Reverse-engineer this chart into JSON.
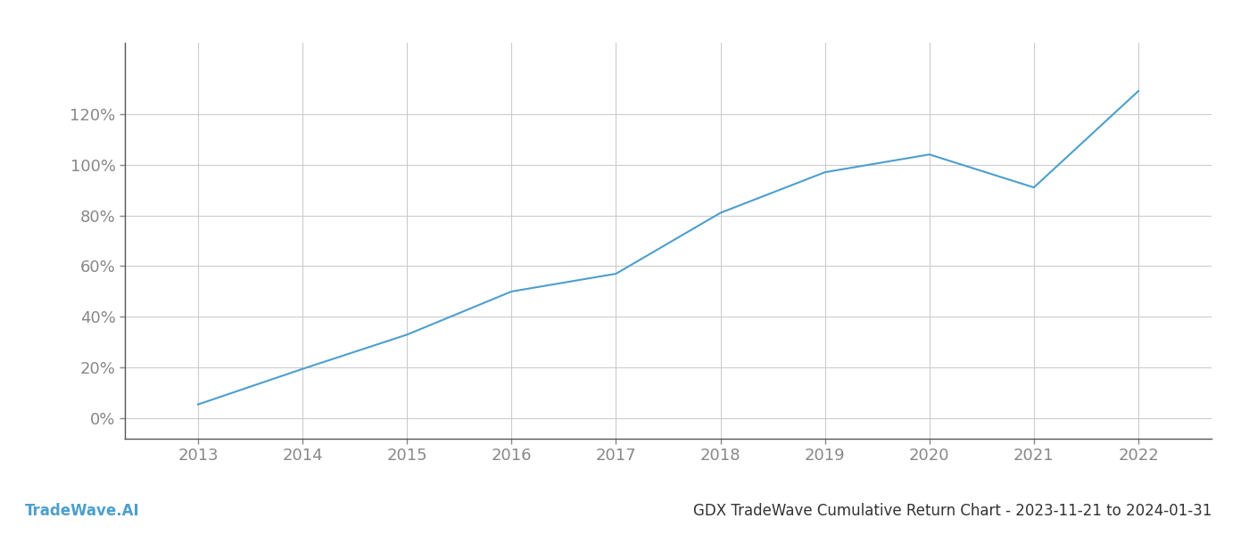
{
  "x_years": [
    2013,
    2014,
    2015,
    2016,
    2017,
    2018,
    2019,
    2020,
    2021,
    2022
  ],
  "y_values": [
    5.5,
    19.5,
    33,
    50,
    57,
    81,
    97,
    104,
    91,
    129
  ],
  "line_color": "#4d9fcc",
  "background_color": "#ffffff",
  "grid_color": "#cccccc",
  "axis_color": "#555555",
  "tick_color": "#888888",
  "title_text": "GDX TradeWave Cumulative Return Chart - 2023-11-21 to 2024-01-31",
  "watermark_text": "TradeWave.AI",
  "title_fontsize": 12,
  "watermark_fontsize": 12,
  "tick_fontsize": 13,
  "ylim": [
    -8,
    148
  ],
  "yticks": [
    0,
    20,
    40,
    60,
    80,
    100,
    120
  ],
  "xticks": [
    2013,
    2014,
    2015,
    2016,
    2017,
    2018,
    2019,
    2020,
    2021,
    2022
  ],
  "xlim": [
    2012.3,
    2022.7
  ]
}
